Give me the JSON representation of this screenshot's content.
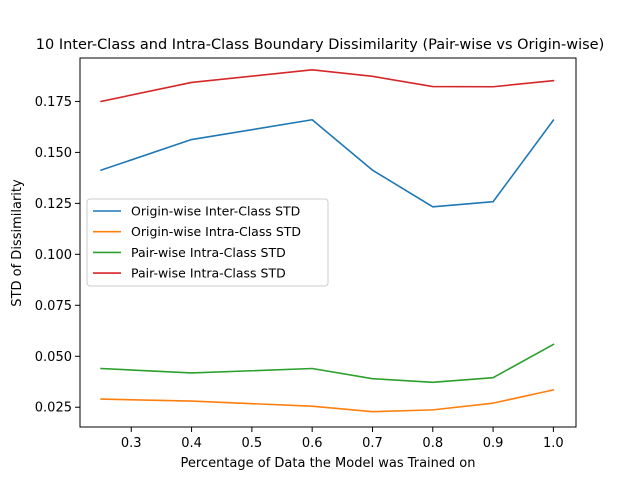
{
  "chart_data": {
    "type": "line",
    "title": "10 Inter-Class and Intra-Class Boundary Dissimilarity (Pair-wise vs Origin-wise)",
    "xlabel": "Percentage of Data the Model was Trained on",
    "ylabel": "STD of Dissimilarity",
    "x": [
      0.25,
      0.4,
      0.6,
      0.7,
      0.8,
      0.9,
      1.0
    ],
    "xlim": [
      0.215,
      1.0375
    ],
    "ylim": [
      0.0153,
      0.1963
    ],
    "xticks": [
      0.3,
      0.4,
      0.5,
      0.6,
      0.7,
      0.8,
      0.9,
      1.0
    ],
    "xtick_labels": [
      "0.3",
      "0.4",
      "0.5",
      "0.6",
      "0.7",
      "0.8",
      "0.9",
      "1.0"
    ],
    "yticks": [
      0.025,
      0.05,
      0.075,
      0.1,
      0.125,
      0.15,
      0.175
    ],
    "ytick_labels": [
      "0.025",
      "0.050",
      "0.075",
      "0.100",
      "0.125",
      "0.150",
      "0.175"
    ],
    "grid": false,
    "legend_position": "center-left",
    "series": [
      {
        "name": "Origin-wise Inter-Class STD",
        "color": "#1f77b4",
        "values": [
          0.1413,
          0.1563,
          0.166,
          0.1413,
          0.1233,
          0.1258,
          0.1658
        ]
      },
      {
        "name": "Origin-wise Intra-Class STD",
        "color": "#ff7f0e",
        "values": [
          0.029,
          0.028,
          0.0255,
          0.0228,
          0.0237,
          0.027,
          0.0335
        ]
      },
      {
        "name": "Pair-wise Intra-Class STD",
        "color": "#2ca02c",
        "values": [
          0.044,
          0.0418,
          0.044,
          0.039,
          0.0372,
          0.0395,
          0.0558
        ]
      },
      {
        "name": "Pair-wise Intra-Class STD",
        "color": "#d62728",
        "values": [
          0.175,
          0.1843,
          0.1905,
          0.1873,
          0.1823,
          0.1822,
          0.1852
        ]
      }
    ]
  }
}
